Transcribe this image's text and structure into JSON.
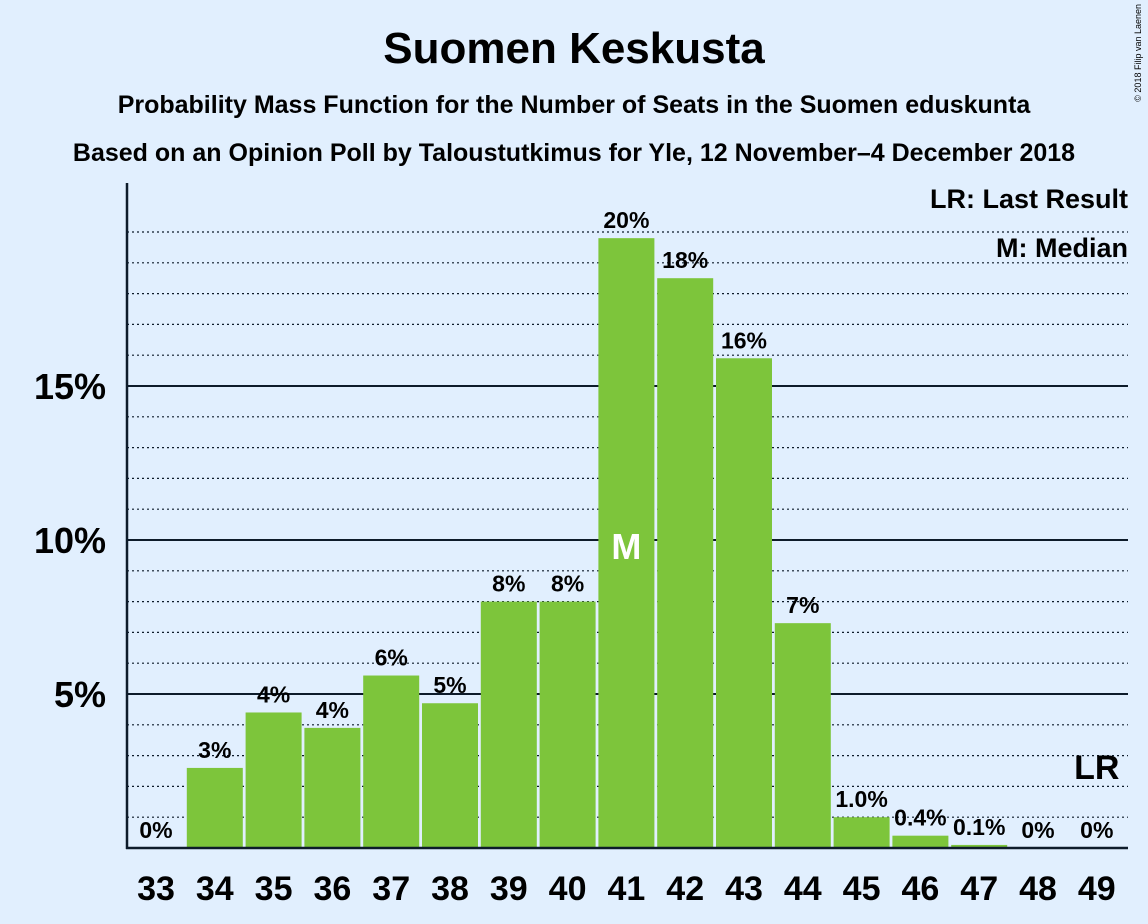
{
  "chart_data": {
    "type": "bar",
    "title": "Suomen Keskusta",
    "subtitle": "Probability Mass Function for the Number of Seats in the Suomen eduskunta",
    "subtitle2": "Based on an Opinion Poll by Taloustutkimus for Yle, 12 November–4 December 2018",
    "copyright": "© 2018 Filip van Laenen",
    "categories": [
      "33",
      "34",
      "35",
      "36",
      "37",
      "38",
      "39",
      "40",
      "41",
      "42",
      "43",
      "44",
      "45",
      "46",
      "47",
      "48",
      "49"
    ],
    "values": [
      0,
      2.6,
      4.4,
      3.9,
      5.6,
      4.7,
      8.0,
      8.0,
      19.8,
      18.5,
      15.9,
      7.3,
      1.0,
      0.4,
      0.1,
      0,
      0
    ],
    "value_labels": [
      "0%",
      "3%",
      "4%",
      "4%",
      "6%",
      "5%",
      "8%",
      "8%",
      "20%",
      "18%",
      "16%",
      "7%",
      "1.0%",
      "0.4%",
      "0.1%",
      "0%",
      "0%"
    ],
    "ylim": [
      0,
      21.6
    ],
    "y_ticks": [
      5,
      10,
      15
    ],
    "y_tick_labels": [
      "5%",
      "10%",
      "15%"
    ],
    "minor_gridline_step": 1,
    "median_category": "41",
    "median_marker": "M",
    "last_result_category": "49",
    "last_result_marker": "LR",
    "legend": [
      "LR: Last Result",
      "M: Median"
    ],
    "bar_color": "#7DC53B",
    "background_color": "#E1EFFE"
  }
}
